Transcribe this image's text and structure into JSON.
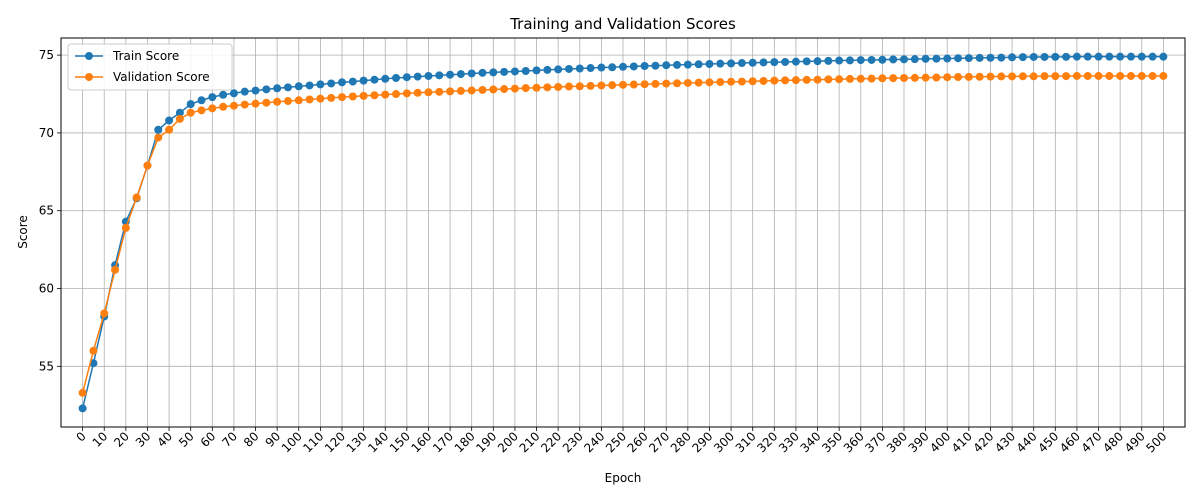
{
  "chart_data": {
    "type": "line",
    "title": "Training and Validation Scores",
    "xlabel": "Epoch",
    "ylabel": "Score",
    "xlim": [
      -10,
      510
    ],
    "ylim": [
      51.1,
      76.1
    ],
    "grid": true,
    "legend_position": "top-left",
    "x_ticks": [
      0,
      10,
      20,
      30,
      40,
      50,
      60,
      70,
      80,
      90,
      100,
      110,
      120,
      130,
      140,
      150,
      160,
      170,
      180,
      190,
      200,
      210,
      220,
      230,
      240,
      250,
      260,
      270,
      280,
      290,
      300,
      310,
      320,
      330,
      340,
      350,
      360,
      370,
      380,
      390,
      400,
      410,
      420,
      430,
      440,
      450,
      460,
      470,
      480,
      490,
      500
    ],
    "x_tick_labels": [
      "0",
      "10",
      "20",
      "30",
      "40",
      "50",
      "60",
      "70",
      "80",
      "90",
      "100",
      "110",
      "120",
      "130",
      "140",
      "150",
      "160",
      "170",
      "180",
      "190",
      "200",
      "210",
      "220",
      "230",
      "240",
      "250",
      "260",
      "270",
      "280",
      "290",
      "300",
      "310",
      "320",
      "330",
      "340",
      "350",
      "360",
      "370",
      "380",
      "390",
      "400",
      "410",
      "420",
      "430",
      "440",
      "450",
      "460",
      "470",
      "480",
      "490",
      "500"
    ],
    "y_ticks": [
      55,
      60,
      65,
      70,
      75
    ],
    "y_tick_labels": [
      "55",
      "60",
      "65",
      "70",
      "75"
    ],
    "x": [
      0,
      5,
      10,
      15,
      20,
      25,
      30,
      35,
      40,
      45,
      50,
      55,
      60,
      65,
      70,
      75,
      80,
      85,
      90,
      95,
      100,
      105,
      110,
      115,
      120,
      125,
      130,
      135,
      140,
      145,
      150,
      155,
      160,
      165,
      170,
      175,
      180,
      185,
      190,
      195,
      200,
      205,
      210,
      215,
      220,
      225,
      230,
      235,
      240,
      245,
      250,
      255,
      260,
      265,
      270,
      275,
      280,
      285,
      290,
      295,
      300,
      305,
      310,
      315,
      320,
      325,
      330,
      335,
      340,
      345,
      350,
      355,
      360,
      365,
      370,
      375,
      380,
      385,
      390,
      395,
      400,
      405,
      410,
      415,
      420,
      425,
      430,
      435,
      440,
      445,
      450,
      455,
      460,
      465,
      470,
      475,
      480,
      485,
      490,
      495,
      500
    ],
    "series": [
      {
        "name": "Train Score",
        "color": "#1f77b4",
        "values": [
          52.3,
          55.2,
          58.2,
          61.5,
          64.3,
          65.8,
          67.9,
          70.2,
          70.8,
          71.3,
          71.85,
          72.1,
          72.3,
          72.45,
          72.55,
          72.65,
          72.72,
          72.8,
          72.87,
          72.93,
          73.0,
          73.05,
          73.12,
          73.18,
          73.25,
          73.3,
          73.36,
          73.42,
          73.48,
          73.53,
          73.58,
          73.62,
          73.66,
          73.7,
          73.74,
          73.78,
          73.82,
          73.86,
          73.89,
          73.92,
          73.95,
          73.98,
          74.02,
          74.05,
          74.08,
          74.11,
          74.14,
          74.17,
          74.2,
          74.22,
          74.25,
          74.27,
          74.3,
          74.32,
          74.35,
          74.37,
          74.39,
          74.41,
          74.43,
          74.45,
          74.47,
          74.49,
          74.51,
          74.53,
          74.55,
          74.56,
          74.58,
          74.6,
          74.61,
          74.63,
          74.65,
          74.66,
          74.68,
          74.69,
          74.7,
          74.72,
          74.73,
          74.74,
          74.76,
          74.77,
          74.78,
          74.8,
          74.81,
          74.82,
          74.83,
          74.84,
          74.86,
          74.87,
          74.88,
          74.88,
          74.89,
          74.89,
          74.9,
          74.9,
          74.9,
          74.9,
          74.9,
          74.9,
          74.9,
          74.9,
          74.9
        ]
      },
      {
        "name": "Validation Score",
        "color": "#ff7f0e",
        "values": [
          53.3,
          56.0,
          58.4,
          61.2,
          63.9,
          65.85,
          67.9,
          69.7,
          70.2,
          70.9,
          71.3,
          71.45,
          71.58,
          71.68,
          71.75,
          71.82,
          71.88,
          71.94,
          72.0,
          72.05,
          72.1,
          72.15,
          72.2,
          72.25,
          72.3,
          72.34,
          72.38,
          72.42,
          72.46,
          72.5,
          72.54,
          72.58,
          72.61,
          72.64,
          72.67,
          72.7,
          72.73,
          72.76,
          72.79,
          72.82,
          72.85,
          72.88,
          72.9,
          72.93,
          72.95,
          72.98,
          73.0,
          73.02,
          73.05,
          73.07,
          73.09,
          73.11,
          73.13,
          73.15,
          73.17,
          73.19,
          73.21,
          73.23,
          73.25,
          73.27,
          73.29,
          73.3,
          73.32,
          73.34,
          73.36,
          73.38,
          73.39,
          73.41,
          73.42,
          73.44,
          73.45,
          73.47,
          73.48,
          73.49,
          73.51,
          73.52,
          73.53,
          73.54,
          73.55,
          73.56,
          73.58,
          73.59,
          73.6,
          73.61,
          73.62,
          73.63,
          73.63,
          73.64,
          73.64,
          73.65,
          73.65,
          73.65,
          73.66,
          73.66,
          73.66,
          73.66,
          73.66,
          73.66,
          73.66,
          73.66,
          73.66
        ]
      }
    ]
  }
}
